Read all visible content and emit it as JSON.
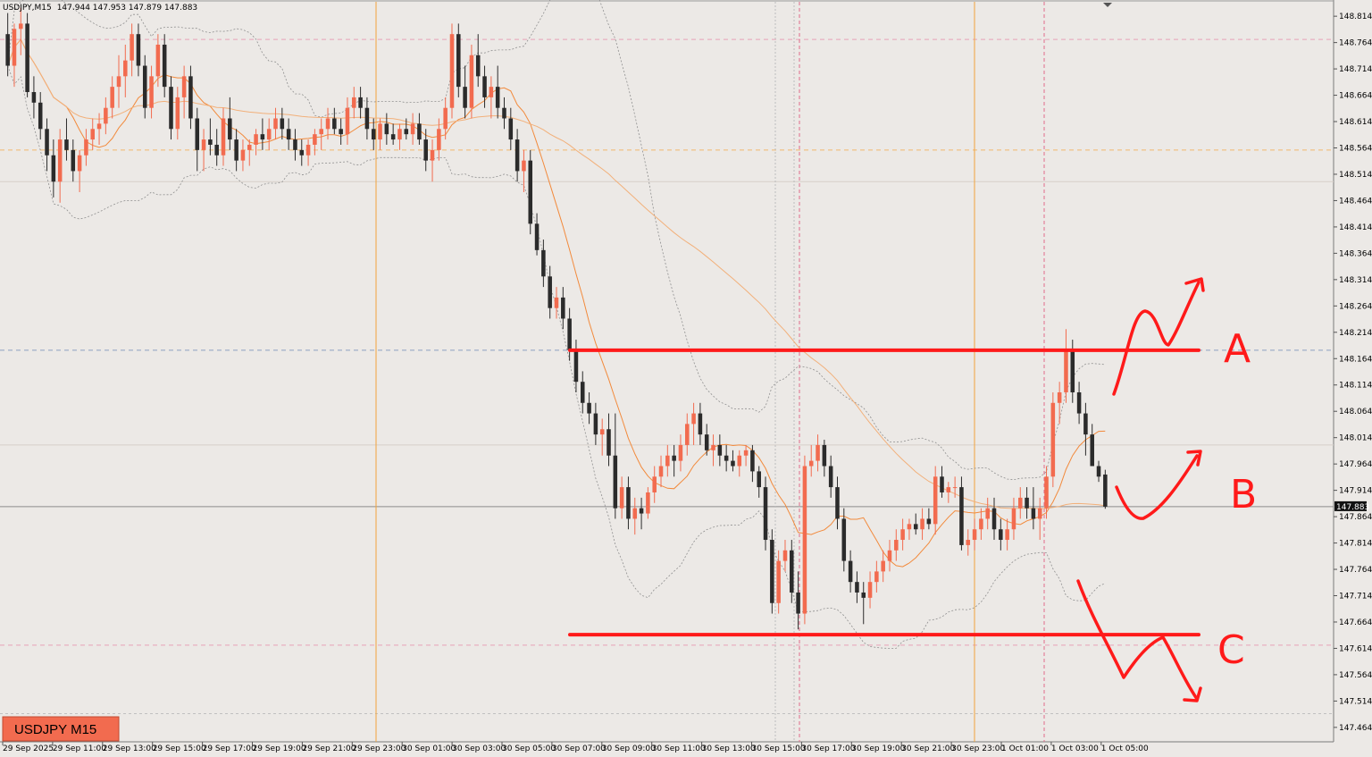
{
  "header": {
    "symbol": "USDJPY,M15",
    "ohlc": "147.944 147.953 147.879 147.883"
  },
  "badge": {
    "label": "USDJPY M15",
    "color": "#f26b4f"
  },
  "colors": {
    "background": "#ece9e6",
    "bull": "#f26b4f",
    "bear": "#2b2b2b",
    "ma_fast": "#f28a3c",
    "ma_slow": "#f2b07a",
    "session_line": "#f2a43c",
    "annotation": "#ff1a1a"
  },
  "price_axis": {
    "ticks": [
      "148.814",
      "148.764",
      "148.714",
      "148.664",
      "148.614",
      "148.564",
      "148.514",
      "148.464",
      "148.414",
      "148.364",
      "148.314",
      "148.264",
      "148.214",
      "148.164",
      "148.114",
      "148.064",
      "148.014",
      "147.964",
      "147.914",
      "147.864",
      "147.814",
      "147.764",
      "147.714",
      "147.664",
      "147.614",
      "147.564",
      "147.514",
      "147.464"
    ],
    "current_price": "147.883"
  },
  "time_axis": {
    "ticks": [
      "29 Sep 2025",
      "29 Sep 11:00",
      "29 Sep 13:00",
      "29 Sep 15:00",
      "29 Sep 17:00",
      "29 Sep 19:00",
      "29 Sep 21:00",
      "29 Sep 23:00",
      "30 Sep 01:00",
      "30 Sep 03:00",
      "30 Sep 05:00",
      "30 Sep 07:00",
      "30 Sep 09:00",
      "30 Sep 11:00",
      "30 Sep 13:00",
      "30 Sep 15:00",
      "30 Sep 17:00",
      "30 Sep 19:00",
      "30 Sep 21:00",
      "30 Sep 23:00",
      "1 Oct 01:00",
      "1 Oct 03:00",
      "1 Oct 05:00"
    ]
  },
  "annotations": {
    "level_a": {
      "label": "A",
      "price": 148.18
    },
    "level_b": {
      "label": "B"
    },
    "level_c": {
      "label": "C",
      "price": 147.64
    }
  },
  "chart_data": {
    "type": "candlestick",
    "symbol": "USDJPY",
    "timeframe": "M15",
    "ylim": [
      147.44,
      148.83
    ],
    "grid": false,
    "candles": [
      [
        148.78,
        148.82,
        148.7,
        148.72
      ],
      [
        148.72,
        148.8,
        148.68,
        148.79
      ],
      [
        148.79,
        148.83,
        148.74,
        148.8
      ],
      [
        148.8,
        148.82,
        148.66,
        148.67
      ],
      [
        148.67,
        148.7,
        148.62,
        148.65
      ],
      [
        148.65,
        148.67,
        148.58,
        148.6
      ],
      [
        148.6,
        148.62,
        148.52,
        148.55
      ],
      [
        148.55,
        148.58,
        148.47,
        148.5
      ],
      [
        148.5,
        148.6,
        148.46,
        148.58
      ],
      [
        148.58,
        148.62,
        148.54,
        148.56
      ],
      [
        148.56,
        148.58,
        148.5,
        148.52
      ],
      [
        148.52,
        148.56,
        148.48,
        148.55
      ],
      [
        148.55,
        148.6,
        148.53,
        148.58
      ],
      [
        148.58,
        148.62,
        148.56,
        148.6
      ],
      [
        148.6,
        148.63,
        148.57,
        148.61
      ],
      [
        148.61,
        148.66,
        148.59,
        148.64
      ],
      [
        148.64,
        148.7,
        148.62,
        148.68
      ],
      [
        148.68,
        148.74,
        148.64,
        148.7
      ],
      [
        148.7,
        148.76,
        148.66,
        148.73
      ],
      [
        148.73,
        148.8,
        148.7,
        148.78
      ],
      [
        148.78,
        148.8,
        148.7,
        148.72
      ],
      [
        148.72,
        148.74,
        148.62,
        148.64
      ],
      [
        148.64,
        148.72,
        148.62,
        148.7
      ],
      [
        148.7,
        148.78,
        148.68,
        148.76
      ],
      [
        148.76,
        148.78,
        148.66,
        148.68
      ],
      [
        148.68,
        148.7,
        148.58,
        148.6
      ],
      [
        148.6,
        148.68,
        148.58,
        148.66
      ],
      [
        148.66,
        148.72,
        148.62,
        148.7
      ],
      [
        148.7,
        148.72,
        148.6,
        148.62
      ],
      [
        148.62,
        148.64,
        148.52,
        148.56
      ],
      [
        148.56,
        148.6,
        148.52,
        148.58
      ],
      [
        148.58,
        148.62,
        148.55,
        148.57
      ],
      [
        148.57,
        148.6,
        148.53,
        148.55
      ],
      [
        148.55,
        148.64,
        148.53,
        148.62
      ],
      [
        148.62,
        148.66,
        148.56,
        148.58
      ],
      [
        148.58,
        148.6,
        148.52,
        148.54
      ],
      [
        148.54,
        148.58,
        148.52,
        148.56
      ],
      [
        148.56,
        148.58,
        148.53,
        148.57
      ],
      [
        148.57,
        148.6,
        148.55,
        148.59
      ],
      [
        148.59,
        148.62,
        148.56,
        148.58
      ],
      [
        148.58,
        148.62,
        148.56,
        148.6
      ],
      [
        148.6,
        148.64,
        148.58,
        148.62
      ],
      [
        148.62,
        148.64,
        148.58,
        148.6
      ],
      [
        148.6,
        148.62,
        148.56,
        148.58
      ],
      [
        148.58,
        148.6,
        148.54,
        148.56
      ],
      [
        148.56,
        148.58,
        148.53,
        148.55
      ],
      [
        148.55,
        148.58,
        148.53,
        148.57
      ],
      [
        148.57,
        148.6,
        148.55,
        148.59
      ],
      [
        148.59,
        148.62,
        148.56,
        148.6
      ],
      [
        148.6,
        148.64,
        148.58,
        148.62
      ],
      [
        148.62,
        148.64,
        148.59,
        148.6
      ],
      [
        148.6,
        148.62,
        148.57,
        148.59
      ],
      [
        148.59,
        148.66,
        148.57,
        148.64
      ],
      [
        148.64,
        148.68,
        148.62,
        148.66
      ],
      [
        148.66,
        148.68,
        148.62,
        148.64
      ],
      [
        148.64,
        148.66,
        148.58,
        148.6
      ],
      [
        148.6,
        148.62,
        148.56,
        148.58
      ],
      [
        148.58,
        148.62,
        148.56,
        148.61
      ],
      [
        148.61,
        148.63,
        148.57,
        148.59
      ],
      [
        148.59,
        148.61,
        148.57,
        148.58
      ],
      [
        148.58,
        148.61,
        148.56,
        148.6
      ],
      [
        148.6,
        148.62,
        148.58,
        148.59
      ],
      [
        148.59,
        148.63,
        148.57,
        148.61
      ],
      [
        148.61,
        148.63,
        148.57,
        148.58
      ],
      [
        148.58,
        148.6,
        148.52,
        148.54
      ],
      [
        148.54,
        148.58,
        148.5,
        148.56
      ],
      [
        148.56,
        148.62,
        148.54,
        148.6
      ],
      [
        148.6,
        148.66,
        148.58,
        148.64
      ],
      [
        148.64,
        148.8,
        148.62,
        148.78
      ],
      [
        148.78,
        148.8,
        148.66,
        148.68
      ],
      [
        148.68,
        148.72,
        148.62,
        148.64
      ],
      [
        148.64,
        148.76,
        148.62,
        148.74
      ],
      [
        148.74,
        148.78,
        148.68,
        148.7
      ],
      [
        148.7,
        148.72,
        148.64,
        148.66
      ],
      [
        148.66,
        148.7,
        148.62,
        148.68
      ],
      [
        148.68,
        148.72,
        148.62,
        148.64
      ],
      [
        148.64,
        148.66,
        148.6,
        148.62
      ],
      [
        148.62,
        148.64,
        148.56,
        148.58
      ],
      [
        148.58,
        148.6,
        148.5,
        148.52
      ],
      [
        148.52,
        148.56,
        148.48,
        148.54
      ],
      [
        148.54,
        148.56,
        148.4,
        148.42
      ],
      [
        148.42,
        148.44,
        148.36,
        148.37
      ],
      [
        148.37,
        148.39,
        148.3,
        148.32
      ],
      [
        148.32,
        148.34,
        148.24,
        148.26
      ],
      [
        148.26,
        148.3,
        148.24,
        148.28
      ],
      [
        148.28,
        148.3,
        148.22,
        148.24
      ],
      [
        148.24,
        148.26,
        148.16,
        148.18
      ],
      [
        148.18,
        148.2,
        148.1,
        148.12
      ],
      [
        148.12,
        148.14,
        148.06,
        148.08
      ],
      [
        148.08,
        148.1,
        148.04,
        148.06
      ],
      [
        148.06,
        148.08,
        148.0,
        148.02
      ],
      [
        148.02,
        148.05,
        147.98,
        148.03
      ],
      [
        148.03,
        148.06,
        147.96,
        147.98
      ],
      [
        147.98,
        148.06,
        147.86,
        147.88
      ],
      [
        147.88,
        147.94,
        147.86,
        147.92
      ],
      [
        147.92,
        147.94,
        147.84,
        147.86
      ],
      [
        147.86,
        147.9,
        147.83,
        147.88
      ],
      [
        147.88,
        147.9,
        147.84,
        147.87
      ],
      [
        147.87,
        147.92,
        147.86,
        147.91
      ],
      [
        147.91,
        147.96,
        147.89,
        147.94
      ],
      [
        147.94,
        147.98,
        147.92,
        147.96
      ],
      [
        147.96,
        148.0,
        147.94,
        147.98
      ],
      [
        147.98,
        148.0,
        147.94,
        147.97
      ],
      [
        147.97,
        148.02,
        147.95,
        148.0
      ],
      [
        148.0,
        148.06,
        147.98,
        148.04
      ],
      [
        148.04,
        148.08,
        148.0,
        148.06
      ],
      [
        148.06,
        148.08,
        148.0,
        148.02
      ],
      [
        148.02,
        148.04,
        147.98,
        147.99
      ],
      [
        147.99,
        148.02,
        147.96,
        148.0
      ],
      [
        148.0,
        148.02,
        147.96,
        147.98
      ],
      [
        147.98,
        148.0,
        147.95,
        147.97
      ],
      [
        147.97,
        147.99,
        147.95,
        147.96
      ],
      [
        147.96,
        147.99,
        147.94,
        147.98
      ],
      [
        147.98,
        148.0,
        147.96,
        147.99
      ],
      [
        147.99,
        148.0,
        147.93,
        147.95
      ],
      [
        147.95,
        147.96,
        147.9,
        147.92
      ],
      [
        147.92,
        147.94,
        147.8,
        147.82
      ],
      [
        147.82,
        147.84,
        147.68,
        147.7
      ],
      [
        147.7,
        147.8,
        147.68,
        147.78
      ],
      [
        147.78,
        147.82,
        147.76,
        147.8
      ],
      [
        147.8,
        147.82,
        147.7,
        147.72
      ],
      [
        147.72,
        147.76,
        147.65,
        147.68
      ],
      [
        147.68,
        147.98,
        147.66,
        147.96
      ],
      [
        147.96,
        148.0,
        147.94,
        147.97
      ],
      [
        147.97,
        148.02,
        147.95,
        148.0
      ],
      [
        148.0,
        148.01,
        147.94,
        147.96
      ],
      [
        147.96,
        147.98,
        147.9,
        147.92
      ],
      [
        147.92,
        147.94,
        147.84,
        147.86
      ],
      [
        147.86,
        147.88,
        147.76,
        147.78
      ],
      [
        147.78,
        147.8,
        147.72,
        147.74
      ],
      [
        147.74,
        147.76,
        147.7,
        147.72
      ],
      [
        147.72,
        147.74,
        147.66,
        147.71
      ],
      [
        147.71,
        147.76,
        147.69,
        147.74
      ],
      [
        147.74,
        147.78,
        147.72,
        147.76
      ],
      [
        147.76,
        147.8,
        147.74,
        147.78
      ],
      [
        147.78,
        147.82,
        147.76,
        147.8
      ],
      [
        147.8,
        147.84,
        147.78,
        147.82
      ],
      [
        147.82,
        147.86,
        147.8,
        147.84
      ],
      [
        147.84,
        147.86,
        147.82,
        147.85
      ],
      [
        147.85,
        147.87,
        147.83,
        147.84
      ],
      [
        147.84,
        147.88,
        147.82,
        147.86
      ],
      [
        147.86,
        147.88,
        147.84,
        147.85
      ],
      [
        147.85,
        147.96,
        147.83,
        147.94
      ],
      [
        147.94,
        147.96,
        147.9,
        147.91
      ],
      [
        147.91,
        147.93,
        147.89,
        147.92
      ],
      [
        147.92,
        147.94,
        147.9,
        147.92
      ],
      [
        147.92,
        147.94,
        147.8,
        147.81
      ],
      [
        147.81,
        147.84,
        147.79,
        147.82
      ],
      [
        147.82,
        147.86,
        147.8,
        147.84
      ],
      [
        147.84,
        147.88,
        147.82,
        147.86
      ],
      [
        147.86,
        147.9,
        147.84,
        147.88
      ],
      [
        147.88,
        147.9,
        147.82,
        147.84
      ],
      [
        147.84,
        147.86,
        147.8,
        147.82
      ],
      [
        147.82,
        147.86,
        147.8,
        147.84
      ],
      [
        147.84,
        147.9,
        147.82,
        147.88
      ],
      [
        147.88,
        147.92,
        147.86,
        147.9
      ],
      [
        147.9,
        147.92,
        147.86,
        147.88
      ],
      [
        147.88,
        147.92,
        147.84,
        147.86
      ],
      [
        147.86,
        147.9,
        147.82,
        147.88
      ],
      [
        147.88,
        147.96,
        147.86,
        147.94
      ],
      [
        147.94,
        148.1,
        147.92,
        148.08
      ],
      [
        148.08,
        148.12,
        148.04,
        148.1
      ],
      [
        148.1,
        148.22,
        148.08,
        148.18
      ],
      [
        148.18,
        148.2,
        148.08,
        148.1
      ],
      [
        148.1,
        148.12,
        148.04,
        148.06
      ],
      [
        148.06,
        148.08,
        147.98,
        148.02
      ],
      [
        148.02,
        148.04,
        147.96,
        147.96
      ],
      [
        147.96,
        147.97,
        147.93,
        147.94
      ],
      [
        147.944,
        147.953,
        147.879,
        147.883
      ]
    ],
    "drawn_levels": [
      {
        "label": "A",
        "price": 148.18
      },
      {
        "label": "C",
        "price": 147.64
      }
    ]
  }
}
